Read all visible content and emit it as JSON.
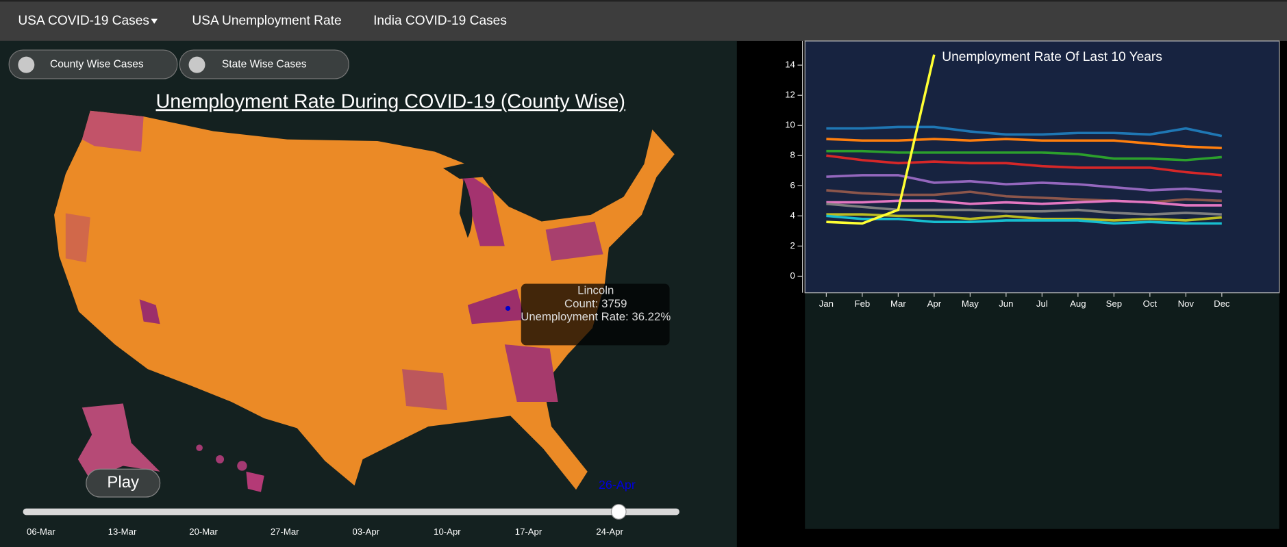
{
  "nav": {
    "items": [
      "USA COVID-19 Cases",
      "USA Unemployment Rate",
      "India COVID-19 Cases"
    ]
  },
  "toggles": [
    "County Wise Cases",
    "State Wise Cases"
  ],
  "map": {
    "title": "Unemployment Rate During COVID-19 (County Wise)",
    "tooltip": {
      "name": "Lincoln",
      "count": "Count: 3759",
      "rate": "Unemployment Rate: 36.22%"
    }
  },
  "player": {
    "button": "Play",
    "date": "26-Apr"
  },
  "slider": {
    "ticks": [
      "06-Mar",
      "13-Mar",
      "20-Mar",
      "27-Mar",
      "03-Apr",
      "10-Apr",
      "17-Apr",
      "24-Apr"
    ]
  },
  "chart_data": {
    "type": "line",
    "title": "Unemployment Rate Of Last 10 Years",
    "categories": [
      "Jan",
      "Feb",
      "Mar",
      "Apr",
      "May",
      "Jun",
      "Jul",
      "Aug",
      "Sep",
      "Oct",
      "Nov",
      "Dec"
    ],
    "ylim": [
      -1.1,
      15.6
    ],
    "yticks": [
      0,
      2,
      4,
      6,
      8,
      10,
      12,
      14
    ],
    "grid": false,
    "series": [
      {
        "color": "#1f77b4",
        "values": [
          9.8,
          9.8,
          9.9,
          9.9,
          9.6,
          9.4,
          9.4,
          9.5,
          9.5,
          9.4,
          9.8,
          9.3
        ]
      },
      {
        "color": "#ff7f0e",
        "values": [
          9.1,
          9.0,
          9.0,
          9.1,
          9.0,
          9.1,
          9.0,
          9.0,
          9.0,
          8.8,
          8.6,
          8.5
        ]
      },
      {
        "color": "#2ca02c",
        "values": [
          8.3,
          8.3,
          8.2,
          8.2,
          8.2,
          8.2,
          8.2,
          8.1,
          7.8,
          7.8,
          7.7,
          7.9
        ]
      },
      {
        "color": "#d62728",
        "values": [
          8.0,
          7.7,
          7.5,
          7.6,
          7.5,
          7.5,
          7.3,
          7.2,
          7.2,
          7.2,
          6.9,
          6.7
        ]
      },
      {
        "color": "#9467bd",
        "values": [
          6.6,
          6.7,
          6.7,
          6.2,
          6.3,
          6.1,
          6.2,
          6.1,
          5.9,
          5.7,
          5.8,
          5.6
        ]
      },
      {
        "color": "#8c564b",
        "values": [
          5.7,
          5.5,
          5.4,
          5.4,
          5.6,
          5.3,
          5.2,
          5.1,
          5.0,
          4.9,
          5.1,
          5.0
        ]
      },
      {
        "color": "#e377c2",
        "values": [
          4.9,
          4.9,
          5.0,
          5.0,
          4.8,
          4.9,
          4.8,
          4.9,
          5.0,
          4.9,
          4.7,
          4.7
        ]
      },
      {
        "color": "#7f7f7f",
        "values": [
          4.8,
          4.6,
          4.4,
          4.4,
          4.4,
          4.3,
          4.3,
          4.4,
          4.2,
          4.1,
          4.2,
          4.1
        ]
      },
      {
        "color": "#bcbd22",
        "values": [
          4.1,
          4.1,
          4.0,
          4.0,
          3.8,
          4.0,
          3.8,
          3.8,
          3.7,
          3.8,
          3.7,
          3.9
        ]
      },
      {
        "color": "#17becf",
        "values": [
          4.0,
          3.8,
          3.8,
          3.6,
          3.6,
          3.7,
          3.7,
          3.7,
          3.5,
          3.6,
          3.5,
          3.5
        ]
      },
      {
        "color": "#ffff33",
        "values": [
          3.6,
          3.5,
          4.4,
          14.7,
          null,
          null,
          null,
          null,
          null,
          null,
          null,
          null
        ]
      }
    ]
  }
}
